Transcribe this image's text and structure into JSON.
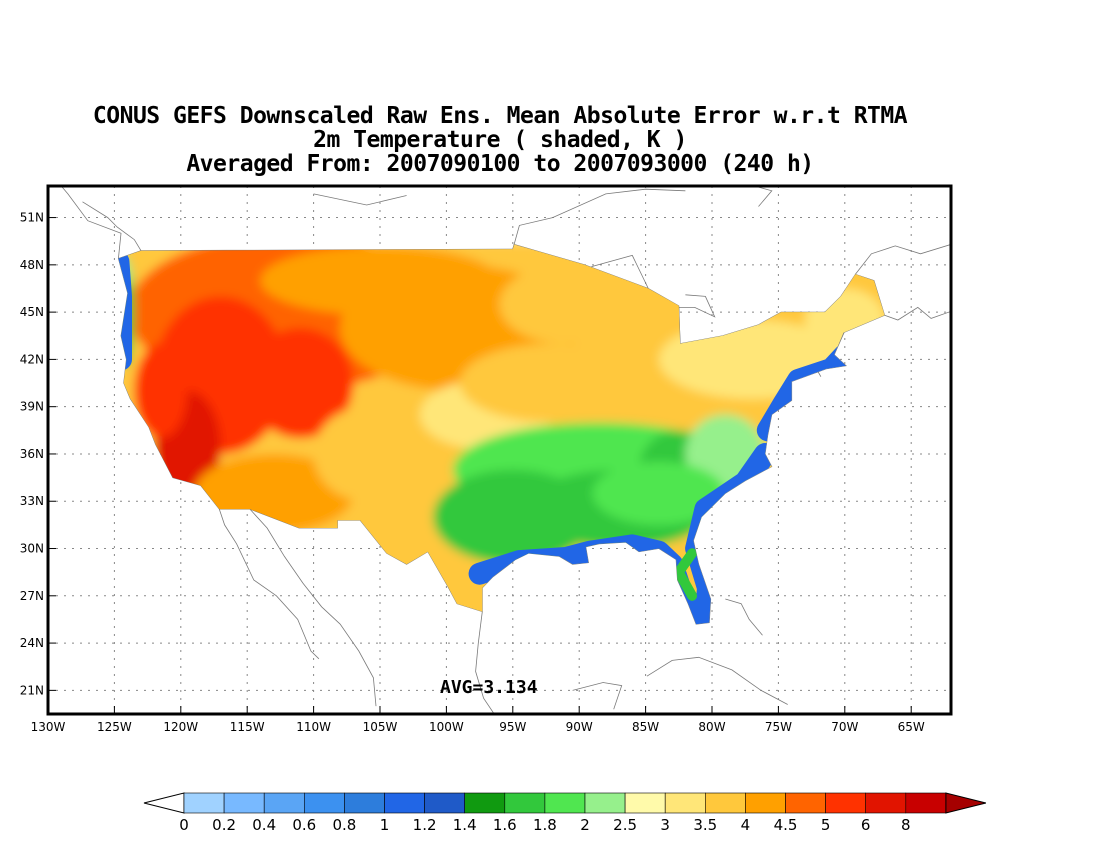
{
  "title": {
    "line1": "CONUS GEFS Downscaled Raw Ens. Mean Absolute Error w.r.t RTMA",
    "line2": "2m Temperature ( shaded, K )",
    "line3": "Averaged From: 2007090100 to 2007093000 (240 h)"
  },
  "map": {
    "lon_range": [
      -130,
      -62
    ],
    "lat_range": [
      19.5,
      53
    ],
    "lat_ticks": [
      "21N",
      "24N",
      "27N",
      "30N",
      "33N",
      "36N",
      "39N",
      "42N",
      "45N",
      "48N",
      "51N"
    ],
    "lat_values": [
      21,
      24,
      27,
      30,
      33,
      36,
      39,
      42,
      45,
      48,
      51
    ],
    "lon_ticks": [
      "130W",
      "125W",
      "120W",
      "115W",
      "110W",
      "105W",
      "100W",
      "95W",
      "90W",
      "85W",
      "80W",
      "75W",
      "70W",
      "65W"
    ],
    "lon_values": [
      -130,
      -125,
      -120,
      -115,
      -110,
      -105,
      -100,
      -95,
      -90,
      -85,
      -80,
      -75,
      -70,
      -65
    ],
    "grid": true,
    "avg_label": "AVG=3.134",
    "avg_value": 3.134
  },
  "colorbar": {
    "levels": [
      "0",
      "0.2",
      "0.4",
      "0.6",
      "0.8",
      "1",
      "1.2",
      "1.4",
      "1.6",
      "1.8",
      "2",
      "2.5",
      "3",
      "3.5",
      "4",
      "4.5",
      "5",
      "6",
      "8"
    ],
    "colors": [
      "#a0d2ff",
      "#78b9ff",
      "#5aa5f5",
      "#3c91f0",
      "#2d7ddc",
      "#2166e6",
      "#1f5ac8",
      "#109a10",
      "#32c83c",
      "#50e650",
      "#96f08c",
      "#fffaaa",
      "#ffe678",
      "#ffc83c",
      "#ffa000",
      "#ff6400",
      "#ff3200",
      "#e11400",
      "#c80000"
    ],
    "under_color": "#ffffff",
    "over_color": "#a50000"
  }
}
